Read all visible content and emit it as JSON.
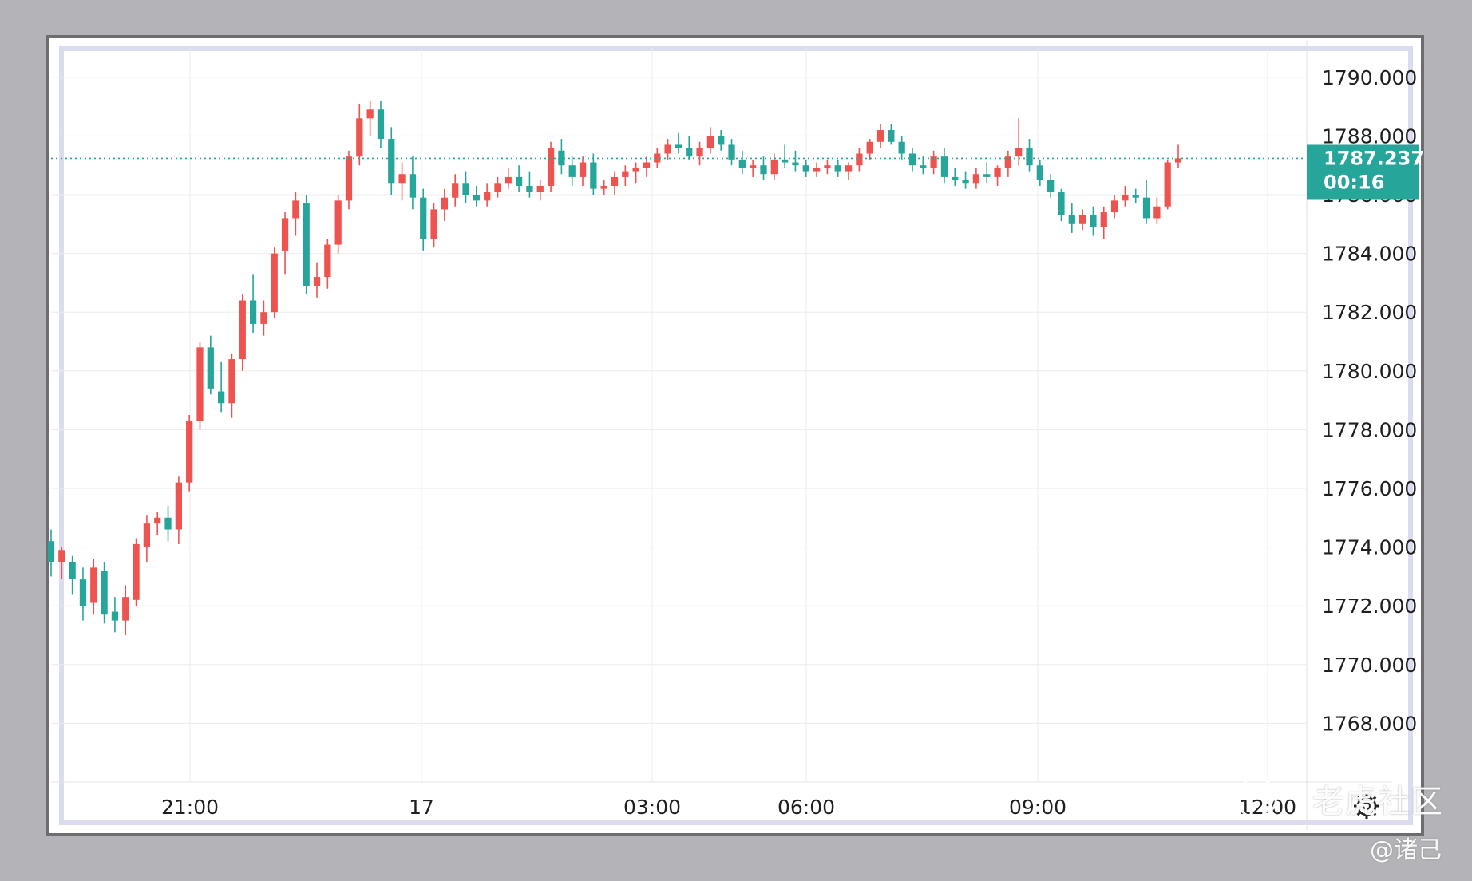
{
  "chart_data": {
    "type": "candlestick",
    "title": "",
    "ylim": [
      1766.0,
      1791.0
    ],
    "y_ticks": [
      "1790.000",
      "1788.000",
      "1786.000",
      "1784.000",
      "1782.000",
      "1780.000",
      "1778.000",
      "1776.000",
      "1774.000",
      "1772.000",
      "1770.000",
      "1768.000"
    ],
    "x_ticks": [
      "21:00",
      "17",
      "03:00",
      "06:00",
      "09:00",
      "12:00"
    ],
    "current_price": {
      "value": 1787.237,
      "label": "1787.237",
      "countdown": "00:16"
    },
    "colors": {
      "up": "#ef5350",
      "down": "#26a69a",
      "grid": "#ececec",
      "price_line": "#26a69a"
    },
    "candles": [
      [
        1774.2,
        1774.6,
        1773.0,
        1773.5
      ],
      [
        1773.5,
        1774.0,
        1772.9,
        1773.9
      ],
      [
        1773.5,
        1773.7,
        1772.4,
        1772.9
      ],
      [
        1772.9,
        1773.3,
        1771.5,
        1772.0
      ],
      [
        1772.1,
        1773.6,
        1771.7,
        1773.3
      ],
      [
        1773.2,
        1773.5,
        1771.4,
        1771.7
      ],
      [
        1771.8,
        1772.3,
        1771.1,
        1771.5
      ],
      [
        1771.5,
        1772.7,
        1771.0,
        1772.3
      ],
      [
        1772.2,
        1774.3,
        1772.0,
        1774.1
      ],
      [
        1774.0,
        1775.1,
        1773.5,
        1774.8
      ],
      [
        1774.8,
        1775.2,
        1774.4,
        1775.0
      ],
      [
        1775.0,
        1775.4,
        1774.2,
        1774.6
      ],
      [
        1774.6,
        1776.4,
        1774.1,
        1776.2
      ],
      [
        1776.2,
        1778.5,
        1775.9,
        1778.3
      ],
      [
        1778.3,
        1781.0,
        1778.0,
        1780.8
      ],
      [
        1780.8,
        1781.2,
        1779.2,
        1779.4
      ],
      [
        1779.3,
        1780.3,
        1778.6,
        1778.9
      ],
      [
        1778.9,
        1780.6,
        1778.4,
        1780.4
      ],
      [
        1780.4,
        1782.6,
        1780.0,
        1782.4
      ],
      [
        1782.4,
        1783.3,
        1781.3,
        1781.6
      ],
      [
        1781.6,
        1782.4,
        1781.2,
        1782.0
      ],
      [
        1782.0,
        1784.2,
        1781.8,
        1784.0
      ],
      [
        1784.1,
        1785.4,
        1783.3,
        1785.2
      ],
      [
        1785.2,
        1786.1,
        1784.6,
        1785.8
      ],
      [
        1785.7,
        1786.0,
        1782.6,
        1782.9
      ],
      [
        1782.9,
        1783.7,
        1782.5,
        1783.2
      ],
      [
        1783.2,
        1784.5,
        1782.8,
        1784.3
      ],
      [
        1784.3,
        1786.0,
        1784.0,
        1785.8
      ],
      [
        1785.8,
        1787.5,
        1785.5,
        1787.3
      ],
      [
        1787.3,
        1789.1,
        1787.0,
        1788.6
      ],
      [
        1788.6,
        1789.2,
        1788.0,
        1788.9
      ],
      [
        1788.9,
        1789.2,
        1787.6,
        1787.9
      ],
      [
        1787.9,
        1788.3,
        1786.0,
        1786.4
      ],
      [
        1786.4,
        1787.1,
        1785.8,
        1786.7
      ],
      [
        1786.7,
        1787.3,
        1785.5,
        1785.9
      ],
      [
        1785.9,
        1786.2,
        1784.1,
        1784.5
      ],
      [
        1784.5,
        1785.7,
        1784.2,
        1785.5
      ],
      [
        1785.5,
        1786.2,
        1785.1,
        1785.9
      ],
      [
        1785.9,
        1786.7,
        1785.6,
        1786.4
      ],
      [
        1786.4,
        1786.8,
        1785.7,
        1786.0
      ],
      [
        1786.0,
        1786.3,
        1785.6,
        1785.8
      ],
      [
        1785.8,
        1786.4,
        1785.6,
        1786.1
      ],
      [
        1786.1,
        1786.6,
        1785.9,
        1786.4
      ],
      [
        1786.4,
        1786.9,
        1786.2,
        1786.6
      ],
      [
        1786.6,
        1787.0,
        1786.1,
        1786.3
      ],
      [
        1786.3,
        1786.8,
        1785.9,
        1786.1
      ],
      [
        1786.1,
        1786.5,
        1785.8,
        1786.3
      ],
      [
        1786.3,
        1787.8,
        1786.1,
        1787.6
      ],
      [
        1787.5,
        1787.9,
        1786.7,
        1787.0
      ],
      [
        1787.0,
        1787.3,
        1786.3,
        1786.6
      ],
      [
        1786.6,
        1787.3,
        1786.3,
        1787.1
      ],
      [
        1787.1,
        1787.4,
        1786.0,
        1786.2
      ],
      [
        1786.2,
        1786.5,
        1786.0,
        1786.3
      ],
      [
        1786.3,
        1786.8,
        1786.0,
        1786.6
      ],
      [
        1786.6,
        1787.0,
        1786.3,
        1786.8
      ],
      [
        1786.8,
        1787.1,
        1786.4,
        1786.9
      ],
      [
        1786.9,
        1787.3,
        1786.6,
        1787.1
      ],
      [
        1787.1,
        1787.6,
        1786.9,
        1787.4
      ],
      [
        1787.4,
        1787.9,
        1787.2,
        1787.7
      ],
      [
        1787.7,
        1788.1,
        1787.4,
        1787.6
      ],
      [
        1787.6,
        1788.0,
        1787.2,
        1787.3
      ],
      [
        1787.3,
        1787.8,
        1787.0,
        1787.6
      ],
      [
        1787.6,
        1788.3,
        1787.4,
        1788.0
      ],
      [
        1788.0,
        1788.2,
        1787.5,
        1787.7
      ],
      [
        1787.7,
        1787.9,
        1787.0,
        1787.2
      ],
      [
        1787.2,
        1787.5,
        1786.7,
        1786.9
      ],
      [
        1786.9,
        1787.2,
        1786.6,
        1787.0
      ],
      [
        1787.0,
        1787.3,
        1786.5,
        1786.7
      ],
      [
        1786.7,
        1787.4,
        1786.5,
        1787.2
      ],
      [
        1787.2,
        1787.7,
        1786.9,
        1787.1
      ],
      [
        1787.1,
        1787.5,
        1786.8,
        1787.0
      ],
      [
        1787.0,
        1787.2,
        1786.6,
        1786.8
      ],
      [
        1786.8,
        1787.1,
        1786.6,
        1786.9
      ],
      [
        1786.9,
        1787.2,
        1786.7,
        1787.0
      ],
      [
        1787.0,
        1787.2,
        1786.6,
        1786.8
      ],
      [
        1786.8,
        1787.1,
        1786.5,
        1787.0
      ],
      [
        1787.0,
        1787.6,
        1786.8,
        1787.4
      ],
      [
        1787.4,
        1787.9,
        1787.2,
        1787.8
      ],
      [
        1787.8,
        1788.4,
        1787.6,
        1788.2
      ],
      [
        1788.2,
        1788.4,
        1787.7,
        1787.8
      ],
      [
        1787.8,
        1788.0,
        1787.2,
        1787.4
      ],
      [
        1787.4,
        1787.6,
        1786.8,
        1787.0
      ],
      [
        1787.0,
        1787.3,
        1786.7,
        1786.9
      ],
      [
        1786.9,
        1787.5,
        1786.7,
        1787.3
      ],
      [
        1787.3,
        1787.6,
        1786.4,
        1786.6
      ],
      [
        1786.6,
        1786.9,
        1786.3,
        1786.5
      ],
      [
        1786.5,
        1786.8,
        1786.2,
        1786.4
      ],
      [
        1786.4,
        1786.9,
        1786.2,
        1786.7
      ],
      [
        1786.7,
        1787.1,
        1786.4,
        1786.6
      ],
      [
        1786.6,
        1787.0,
        1786.3,
        1786.9
      ],
      [
        1786.9,
        1787.5,
        1786.6,
        1787.3
      ],
      [
        1787.3,
        1788.6,
        1787.0,
        1787.6
      ],
      [
        1787.6,
        1787.9,
        1786.8,
        1787.0
      ],
      [
        1787.0,
        1787.2,
        1786.3,
        1786.5
      ],
      [
        1786.5,
        1786.7,
        1785.9,
        1786.1
      ],
      [
        1786.1,
        1786.2,
        1785.1,
        1785.3
      ],
      [
        1785.3,
        1785.7,
        1784.7,
        1785.0
      ],
      [
        1785.0,
        1785.5,
        1784.8,
        1785.3
      ],
      [
        1785.3,
        1785.6,
        1784.6,
        1784.9
      ],
      [
        1784.9,
        1785.6,
        1784.5,
        1785.4
      ],
      [
        1785.4,
        1786.0,
        1785.2,
        1785.8
      ],
      [
        1785.8,
        1786.3,
        1785.6,
        1786.0
      ],
      [
        1786.0,
        1786.2,
        1785.7,
        1785.9
      ],
      [
        1785.9,
        1786.5,
        1785.0,
        1785.2
      ],
      [
        1785.2,
        1785.9,
        1785.0,
        1785.6
      ],
      [
        1785.6,
        1787.2,
        1785.5,
        1787.1
      ],
      [
        1787.1,
        1787.7,
        1786.9,
        1787.24
      ]
    ]
  },
  "watermark": {
    "brand": "老虎社区",
    "user": "@诸己"
  }
}
